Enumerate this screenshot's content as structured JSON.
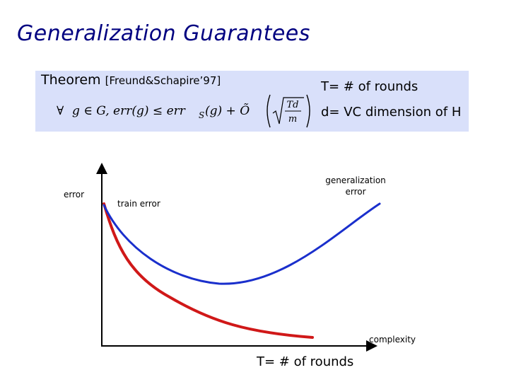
{
  "title": "Generalization Guarantees",
  "theorem": {
    "label": "Theorem",
    "citation": "[Freund&Schapire’97]",
    "formula": {
      "forall": "∀",
      "lhs": "g ∈ G, err(g) ≤ err",
      "subscript": "S",
      "rhs": "(g) + Õ",
      "num": "Td",
      "den": "m"
    },
    "note_t": "T= # of rounds",
    "note_d": "d= VC dimension of H"
  },
  "plot": {
    "y_label": "error",
    "x_label": "complexity",
    "train_label": "train error",
    "gen_label_line1": "generalization",
    "gen_label_line2": "error",
    "bottom_label": "T= # of rounds",
    "colors": {
      "train": "#d01818",
      "generalization": "#1a2fcc",
      "axis": "#000000"
    }
  }
}
